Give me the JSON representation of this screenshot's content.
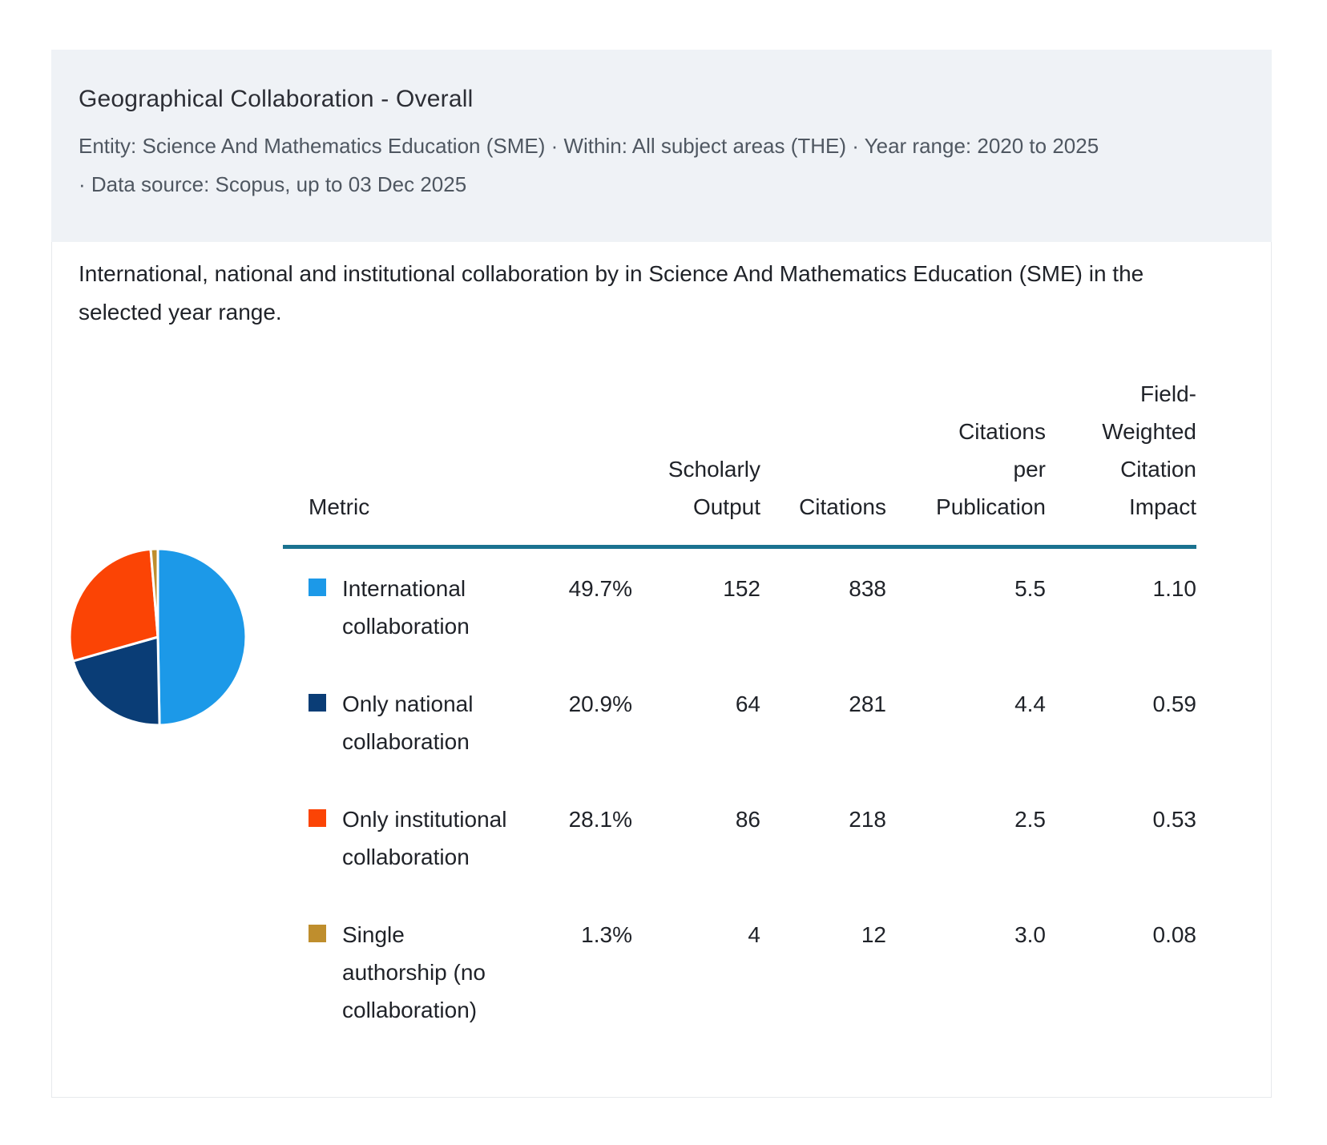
{
  "header": {
    "title": "Geographical Collaboration - Overall",
    "subtitle_line1": "Entity: Science And Mathematics Education (SME) · Within: All subject areas (THE) · Year range: 2020 to 2025",
    "subtitle_line2": "· Data source: Scopus, up to 03 Dec 2025"
  },
  "description": "International, national and institutional collaboration by in Science And Mathematics Education (SME) in the selected year range.",
  "table": {
    "columns": [
      "Metric",
      "",
      "Scholarly Output",
      "Citations",
      "Citations per Publication",
      "Field-Weighted Citation Impact"
    ],
    "rows": [
      {
        "label": "International collaboration",
        "color": "#1c99e8",
        "share": "49.7%",
        "scholarly_output": "152",
        "citations": "838",
        "citations_per_publication": "5.5",
        "fwci": "1.10"
      },
      {
        "label": "Only national collaboration",
        "color": "#0a3d76",
        "share": "20.9%",
        "scholarly_output": "64",
        "citations": "281",
        "citations_per_publication": "4.4",
        "fwci": "0.59"
      },
      {
        "label": "Only institutional collaboration",
        "color": "#fb4405",
        "share": "28.1%",
        "scholarly_output": "86",
        "citations": "218",
        "citations_per_publication": "2.5",
        "fwci": "0.53"
      },
      {
        "label": "Single authorship (no collaboration)",
        "color": "#bf8e2d",
        "share": "1.3%",
        "scholarly_output": "4",
        "citations": "12",
        "citations_per_publication": "3.0",
        "fwci": "0.08"
      }
    ]
  },
  "chart_data": {
    "type": "pie",
    "title": "Geographical Collaboration - Overall",
    "categories": [
      "International collaboration",
      "Only national collaboration",
      "Only institutional collaboration",
      "Single authorship (no collaboration)"
    ],
    "values": [
      49.7,
      20.9,
      28.1,
      1.3
    ],
    "colors": [
      "#1c99e8",
      "#0a3d76",
      "#fb4405",
      "#bf8e2d"
    ],
    "start_angle_deg": 0,
    "direction": "clockwise",
    "legend_position": "table-rows"
  },
  "colors": {
    "header_band": "#eff2f6",
    "divider_teal": "#1a7290",
    "subtitle_gray": "#4f5761",
    "body_text": "#1f2228",
    "card_border": "#e7e9ec"
  }
}
